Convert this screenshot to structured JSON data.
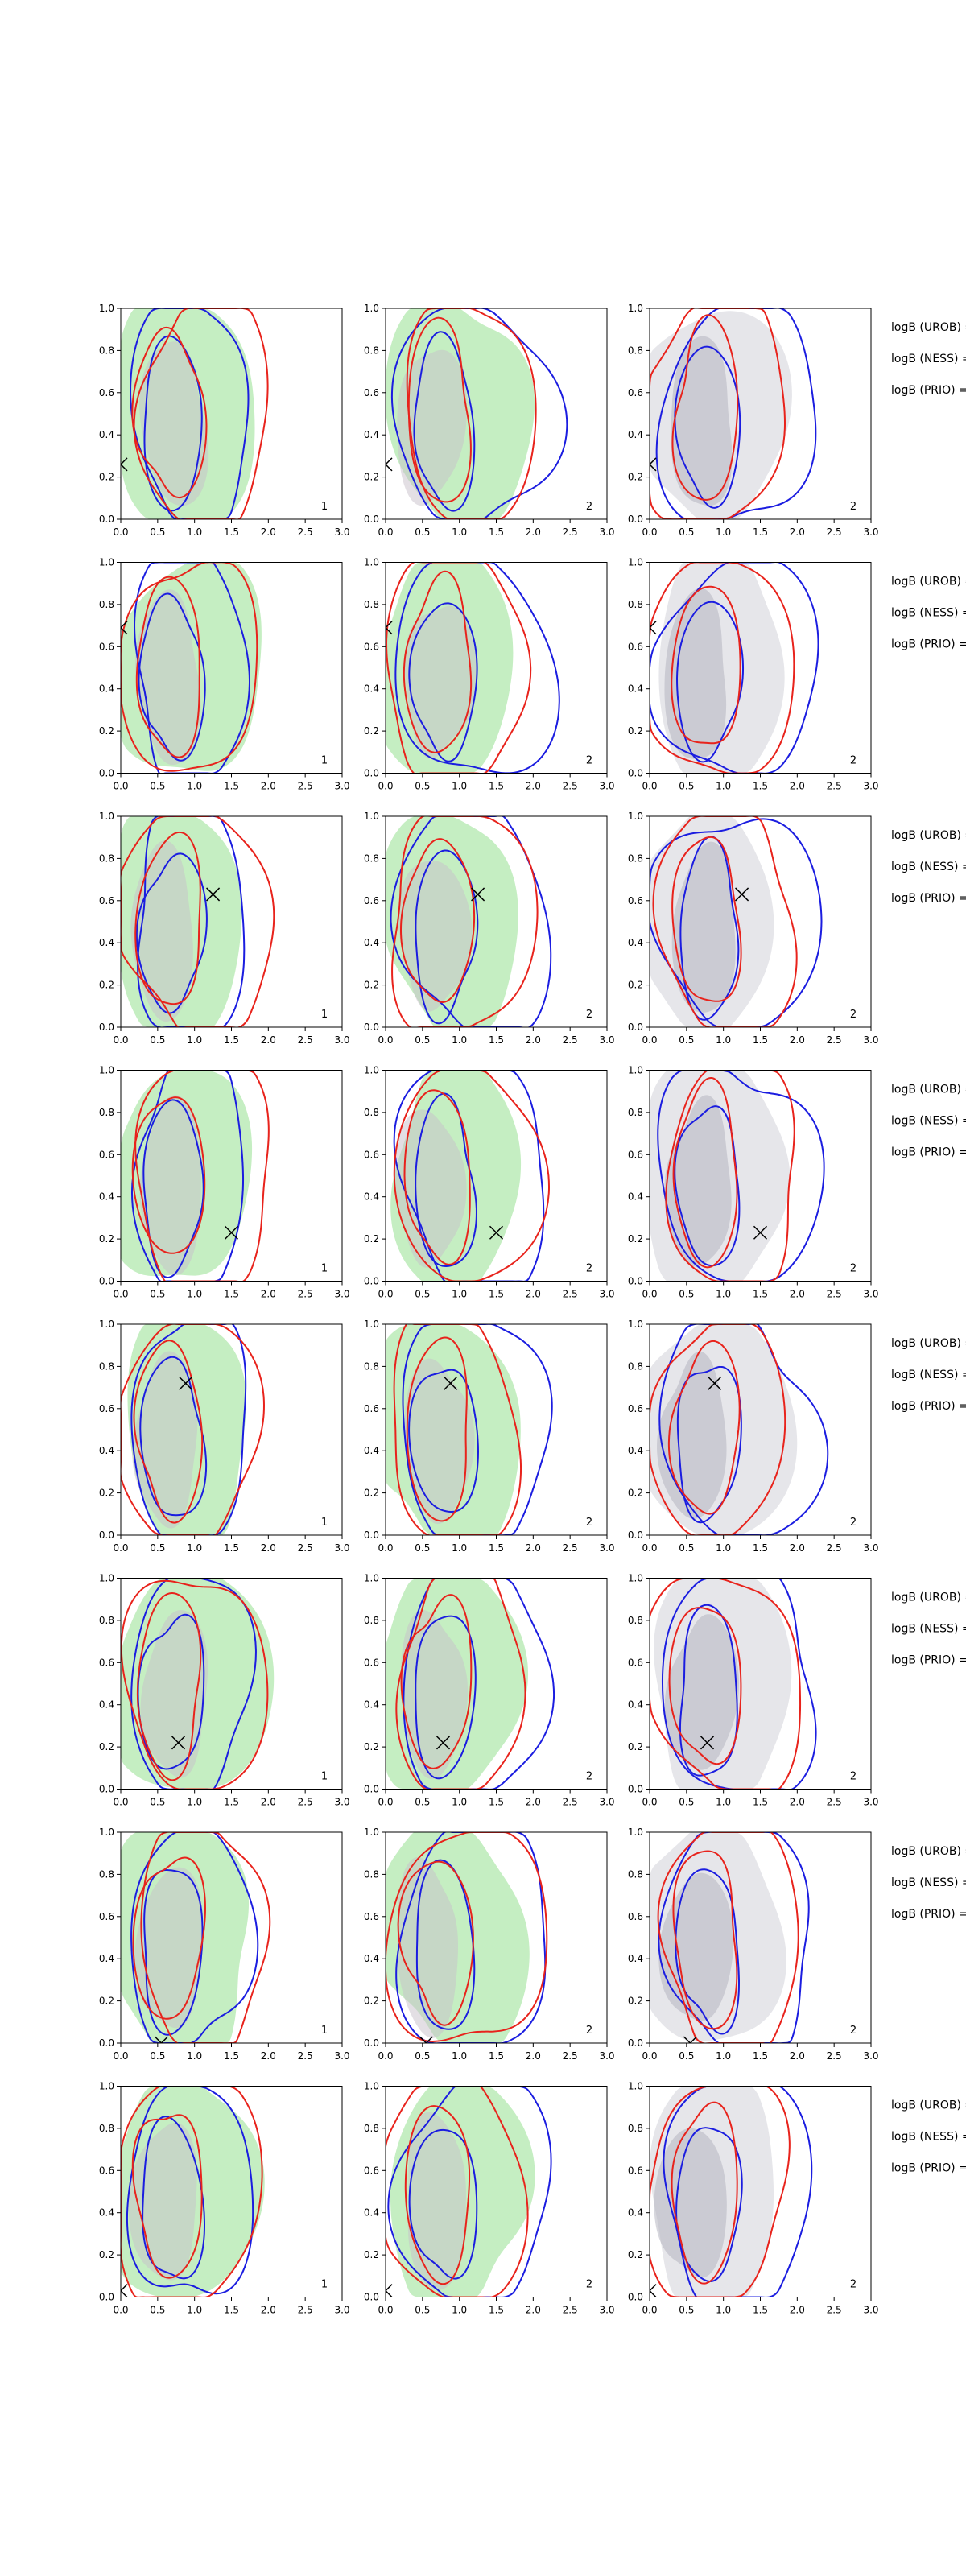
{
  "colors": {
    "red": "#e8231c",
    "blue": "#1b1de0",
    "green_fill": "#9fe29a",
    "grey_fill": "#c8c8d0",
    "frame": "#000000"
  },
  "chart_data": {
    "type": "contour-grid",
    "rows": 8,
    "cols": 3,
    "xlim": [
      0,
      3
    ],
    "ylim": [
      0,
      1
    ],
    "x_ticks": [
      "0.0",
      "0.5",
      "1.0",
      "1.5",
      "2.0",
      "2.5",
      "3.0"
    ],
    "y_ticks": [
      "0.0",
      "0.2",
      "0.4",
      "0.6",
      "0.8",
      "1.0"
    ],
    "panel_corner_labels": [
      "1",
      "2",
      "2"
    ],
    "side_labels": [
      "logB (UROB) =",
      "logB (NESS) =",
      "logB (PRIO) ="
    ],
    "row_rows": [
      {
        "marker": [
          0.0,
          0.26
        ]
      },
      {
        "marker": [
          0.0,
          0.69
        ]
      },
      {
        "marker": [
          1.25,
          0.63
        ]
      },
      {
        "marker": [
          1.5,
          0.23
        ]
      },
      {
        "marker": [
          0.88,
          0.72
        ]
      },
      {
        "marker": [
          0.78,
          0.22
        ]
      },
      {
        "marker": [
          0.55,
          0.0
        ]
      },
      {
        "marker": [
          0.0,
          0.03
        ]
      }
    ]
  }
}
